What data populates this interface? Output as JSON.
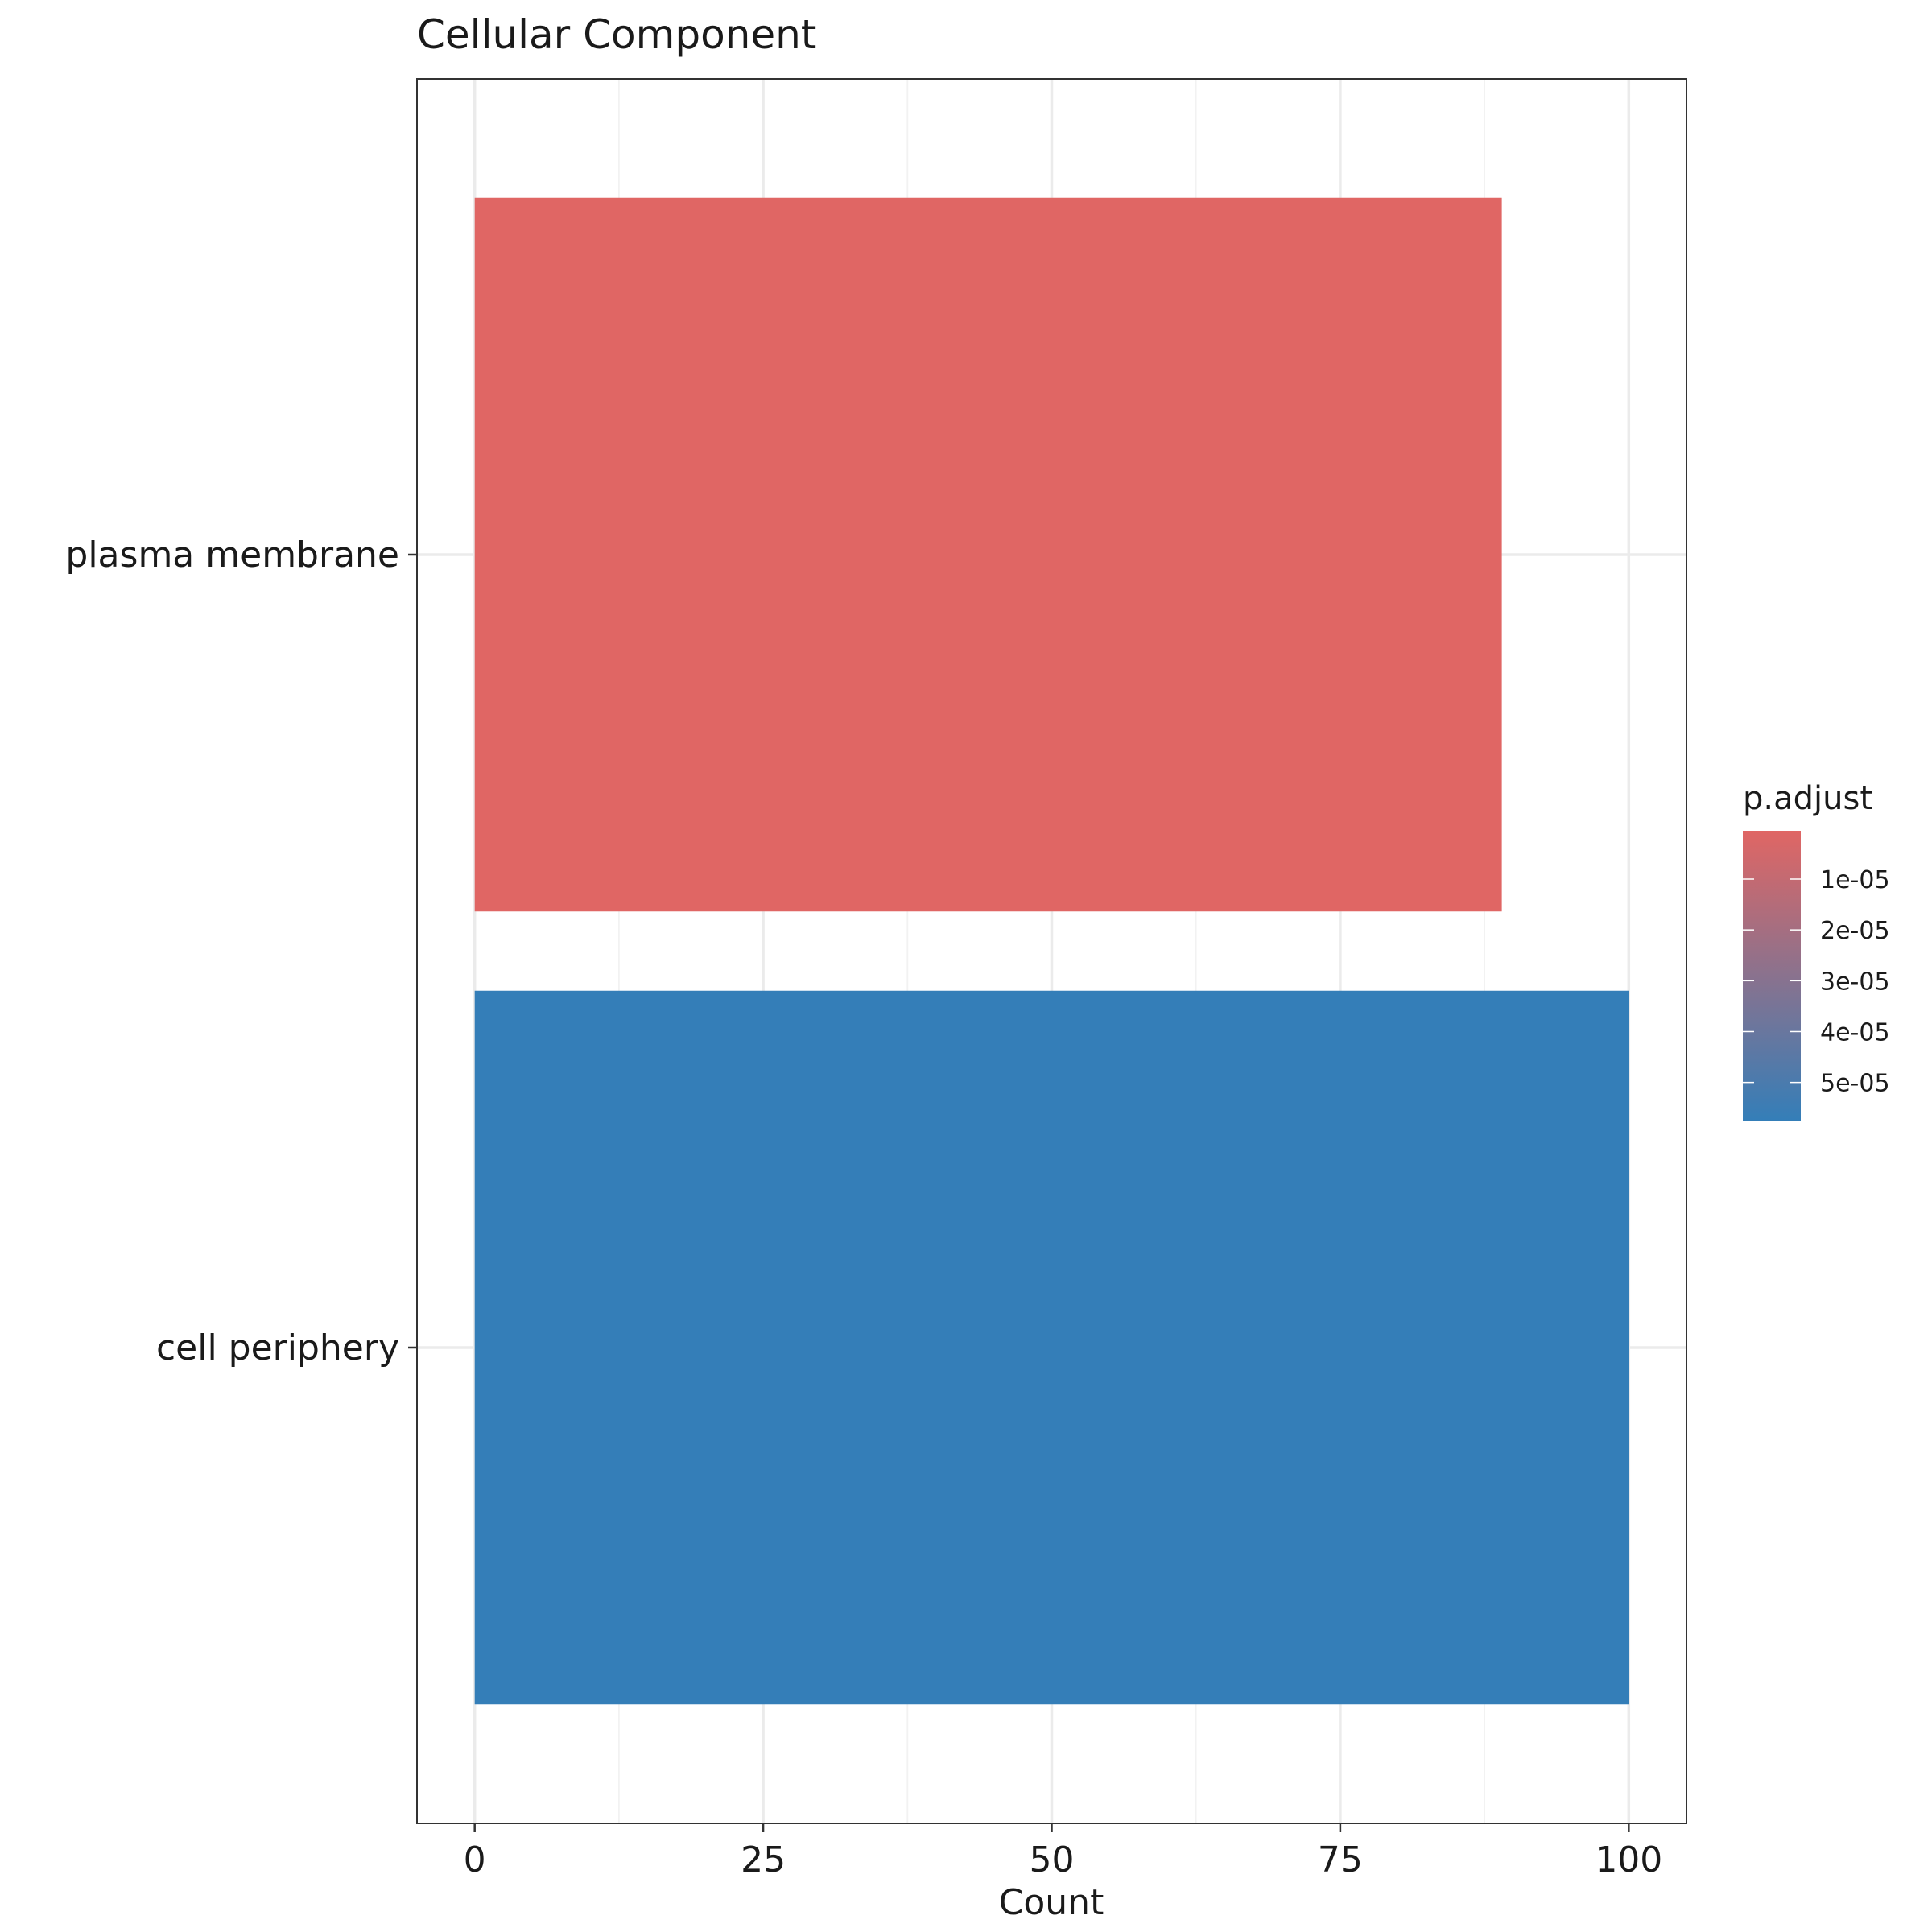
{
  "chart_data": {
    "type": "bar",
    "orientation": "horizontal",
    "title": "Cellular Component",
    "xlabel": "Count",
    "ylabel": "",
    "categories": [
      "plasma membrane",
      "cell periphery"
    ],
    "values": [
      89,
      100
    ],
    "p_adjust": [
      5e-07,
      5.75e-05
    ],
    "bar_colors": [
      "#E06664",
      "#347EB8"
    ],
    "xlim": [
      -5,
      105
    ],
    "x_ticks": [
      0,
      25,
      50,
      75,
      100
    ],
    "x_tick_labels": [
      "0",
      "25",
      "50",
      "75",
      "100"
    ],
    "grid": true,
    "legend": {
      "title": "p.adjust",
      "placement": "right",
      "low_color": "#E06664",
      "high_color": "#347EB8",
      "range": [
        5e-07,
        5.75e-05
      ],
      "ticks": [
        1e-05,
        2e-05,
        3e-05,
        4e-05,
        5e-05
      ],
      "tick_labels": [
        "1e-05",
        "2e-05",
        "3e-05",
        "4e-05",
        "5e-05"
      ]
    }
  }
}
